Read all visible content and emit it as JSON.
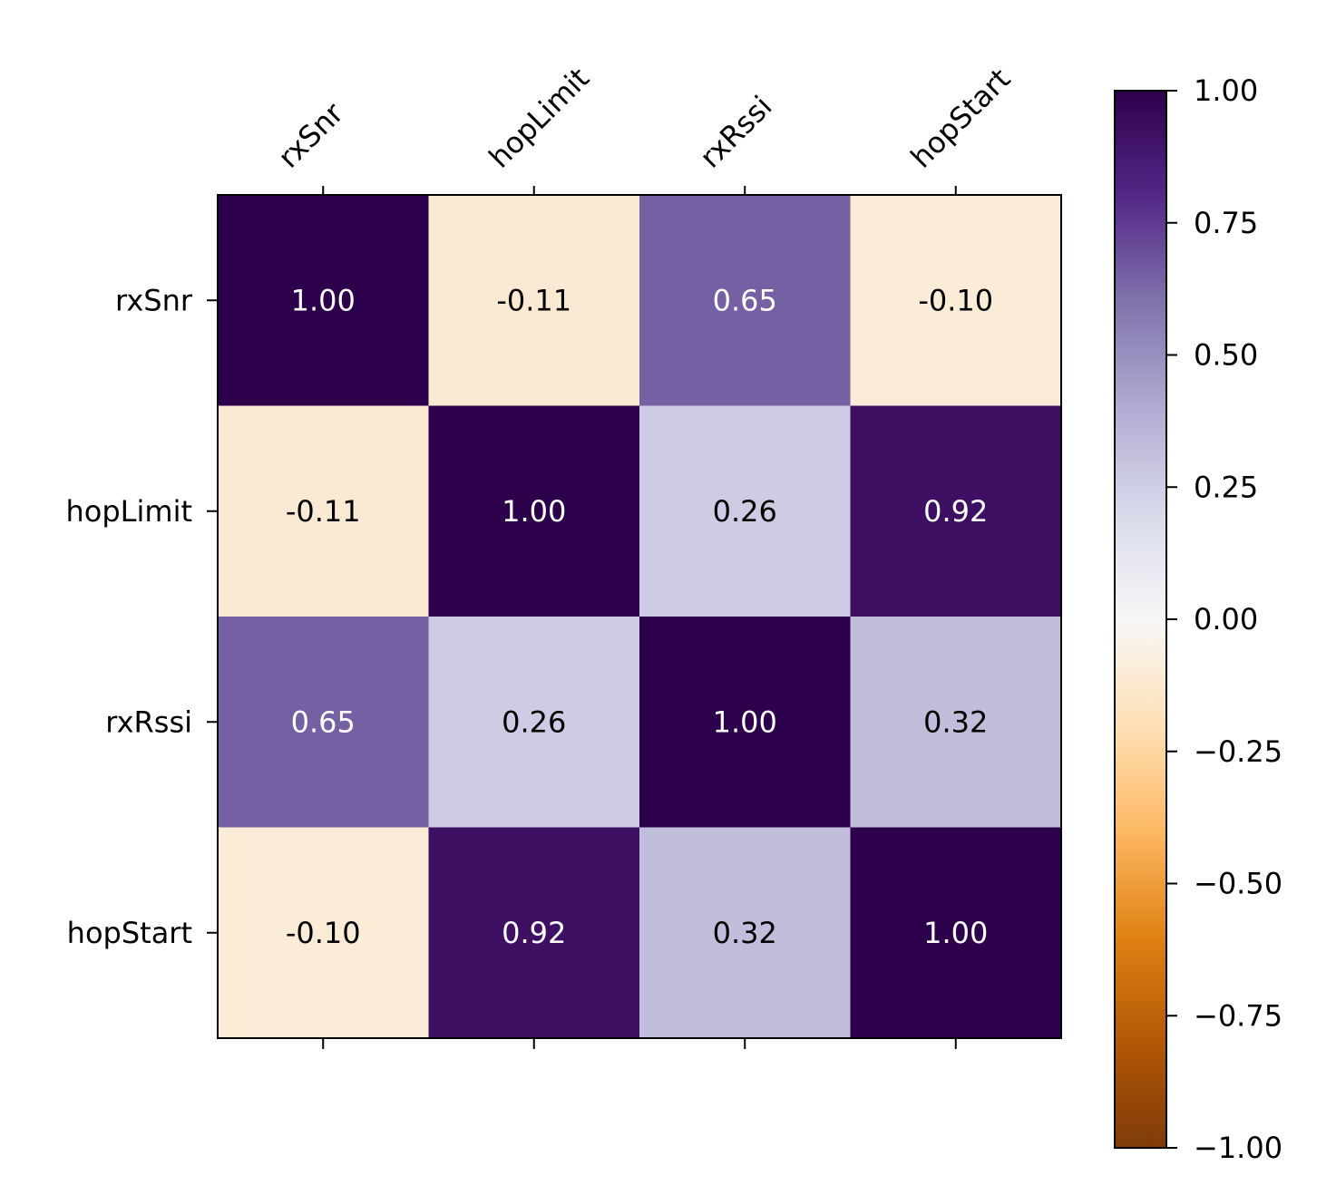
{
  "chart_data": {
    "type": "heatmap",
    "variables": [
      "rxSnr",
      "hopLimit",
      "rxRssi",
      "hopStart"
    ],
    "matrix": [
      [
        1.0,
        -0.11,
        0.65,
        -0.1
      ],
      [
        -0.11,
        1.0,
        0.26,
        0.92
      ],
      [
        0.65,
        0.26,
        1.0,
        0.32
      ],
      [
        -0.1,
        0.92,
        0.32,
        1.0
      ]
    ],
    "cell_labels": [
      [
        "1.00",
        "-0.11",
        "0.65",
        "-0.10"
      ],
      [
        "-0.11",
        "1.00",
        "0.26",
        "0.92"
      ],
      [
        "0.65",
        "0.26",
        "1.00",
        "0.32"
      ],
      [
        "-0.10",
        "0.92",
        "0.32",
        "1.00"
      ]
    ],
    "x_tick_position": "top",
    "colorbar": {
      "colormap": "PuOr",
      "vmin": -1.0,
      "vmax": 1.0,
      "ticks": [
        1.0,
        0.75,
        0.5,
        0.25,
        0.0,
        -0.25,
        -0.5,
        -0.75,
        -1.0
      ],
      "tick_labels": [
        "1.00",
        "0.75",
        "0.50",
        "0.25",
        "0.00",
        "−0.25",
        "−0.50",
        "−0.75",
        "−1.00"
      ]
    },
    "colors": {
      "stops": [
        [
          0.0,
          "#7f3b08"
        ],
        [
          0.1,
          "#b35806"
        ],
        [
          0.2,
          "#e08214"
        ],
        [
          0.3,
          "#fdb863"
        ],
        [
          0.4,
          "#fee0b6"
        ],
        [
          0.5,
          "#f7f7f7"
        ],
        [
          0.6,
          "#d8daeb"
        ],
        [
          0.7,
          "#b2abd2"
        ],
        [
          0.8,
          "#8073ac"
        ],
        [
          0.9,
          "#542788"
        ],
        [
          1.0,
          "#2d004b"
        ]
      ],
      "text_light": "#ffffff",
      "text_dark": "#000000"
    }
  }
}
